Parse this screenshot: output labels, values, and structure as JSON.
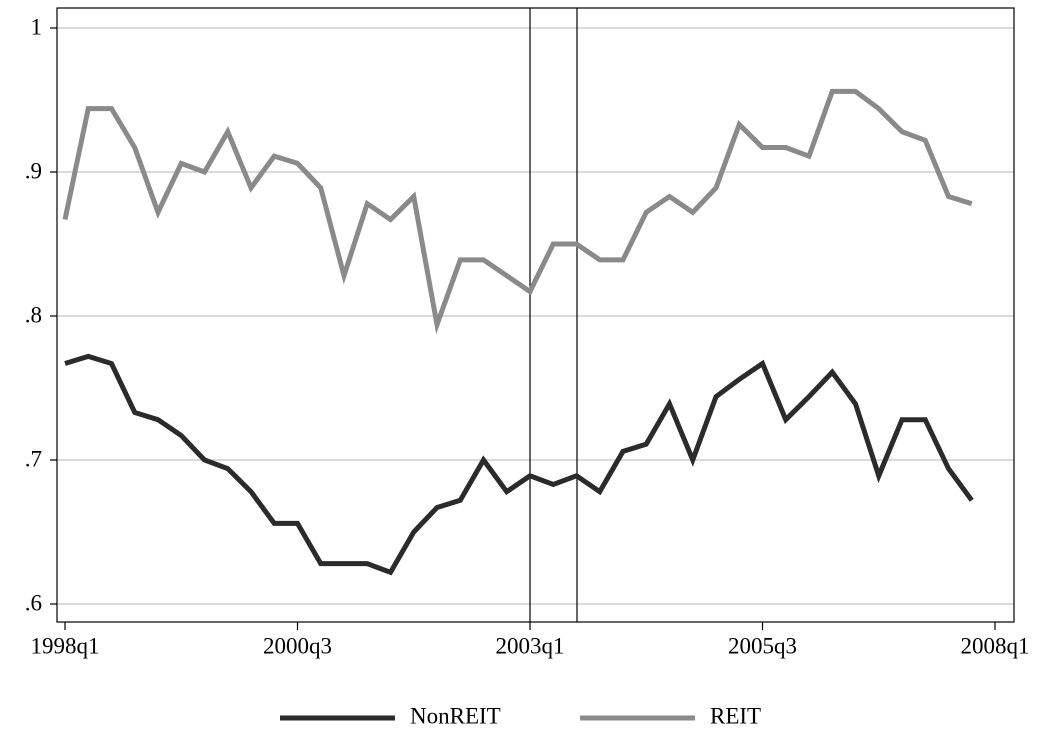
{
  "chart_data": {
    "type": "line",
    "categories": [
      "1998q1",
      null,
      null,
      null,
      null,
      null,
      null,
      null,
      null,
      null,
      "2000q3",
      null,
      null,
      null,
      null,
      null,
      null,
      null,
      null,
      null,
      "2003q1",
      null,
      null,
      null,
      null,
      null,
      null,
      null,
      null,
      null,
      "2005q3",
      null,
      null,
      null,
      null,
      null,
      null,
      null,
      null,
      null,
      "2008q1"
    ],
    "series": [
      {
        "name": "NonREIT",
        "color": "#2b2b2b",
        "values": [
          0.767,
          0.772,
          0.767,
          0.733,
          0.728,
          0.717,
          0.7,
          0.694,
          0.678,
          0.656,
          0.656,
          0.628,
          0.628,
          0.628,
          0.622,
          0.65,
          0.667,
          0.672,
          0.7,
          0.678,
          0.689,
          0.683,
          0.689,
          0.678,
          0.706,
          0.711,
          0.739,
          0.7,
          0.744,
          0.756,
          0.767,
          0.728,
          0.744,
          0.761,
          0.739,
          0.689,
          0.728,
          0.728,
          0.694,
          0.672,
          null
        ]
      },
      {
        "name": "REIT",
        "color": "#8a8a8a",
        "values": [
          0.867,
          0.944,
          0.944,
          0.917,
          0.872,
          0.906,
          0.9,
          0.928,
          0.889,
          0.911,
          0.906,
          0.889,
          0.828,
          0.878,
          0.867,
          0.883,
          0.794,
          0.839,
          0.839,
          0.828,
          0.817,
          0.85,
          0.85,
          0.839,
          0.839,
          0.872,
          0.883,
          0.872,
          0.889,
          0.933,
          0.917,
          0.917,
          0.911,
          0.956,
          0.956,
          0.944,
          0.928,
          0.922,
          0.883,
          0.878,
          null
        ]
      }
    ],
    "ylim": [
      0.5875,
      1.0139
    ],
    "yticks": [
      {
        "value": 0.6,
        "label": ".6"
      },
      {
        "value": 0.7,
        "label": ".7"
      },
      {
        "value": 0.8,
        "label": ".8"
      },
      {
        "value": 0.9,
        "label": ".9"
      },
      1
    ],
    "grid": true,
    "legend": "bottom"
  }
}
